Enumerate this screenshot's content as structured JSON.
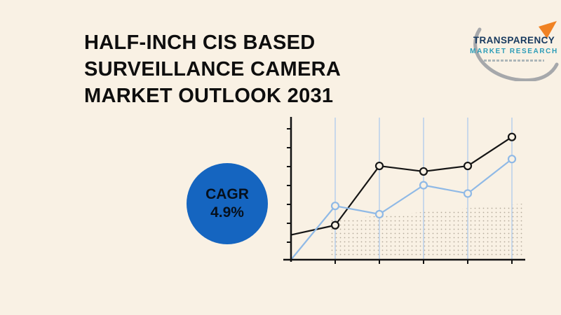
{
  "page": {
    "background_color": "#f9f1e4"
  },
  "header": {
    "title_lines": [
      "HALF-INCH CIS BASED",
      "SURVEILLANCE CAMERA",
      "MARKET OUTLOOK 2031"
    ]
  },
  "logo": {
    "name_line1": "TRANSPARENCY",
    "name_line2": "MARKET RESEARCH",
    "colors": {
      "navy": "#17395e",
      "teal": "#2d9db8",
      "orange": "#f08223",
      "gray": "#a6a8ab"
    }
  },
  "cagr": {
    "label": "CAGR",
    "value": "4.9%",
    "circle_color": "#1565c0"
  },
  "chart_data": {
    "type": "line",
    "title": "",
    "xlabel": "",
    "ylabel": "",
    "x": [
      0,
      1,
      2,
      3,
      4,
      5
    ],
    "series": [
      {
        "name": "series-dark",
        "color": "#151515",
        "values": [
          1.8,
          2.5,
          6.8,
          6.4,
          6.8,
          8.9
        ]
      },
      {
        "name": "series-light-blue",
        "color": "#8fb9e6",
        "values": [
          0,
          3.9,
          3.3,
          5.4,
          4.8,
          7.3
        ]
      }
    ],
    "ylim": [
      0,
      10
    ],
    "gridline_color": "#bcd2ec",
    "grid": "vertical-light-blue",
    "axis_tick_labels": "none",
    "legend": "none",
    "marker_style": "open-circle"
  }
}
